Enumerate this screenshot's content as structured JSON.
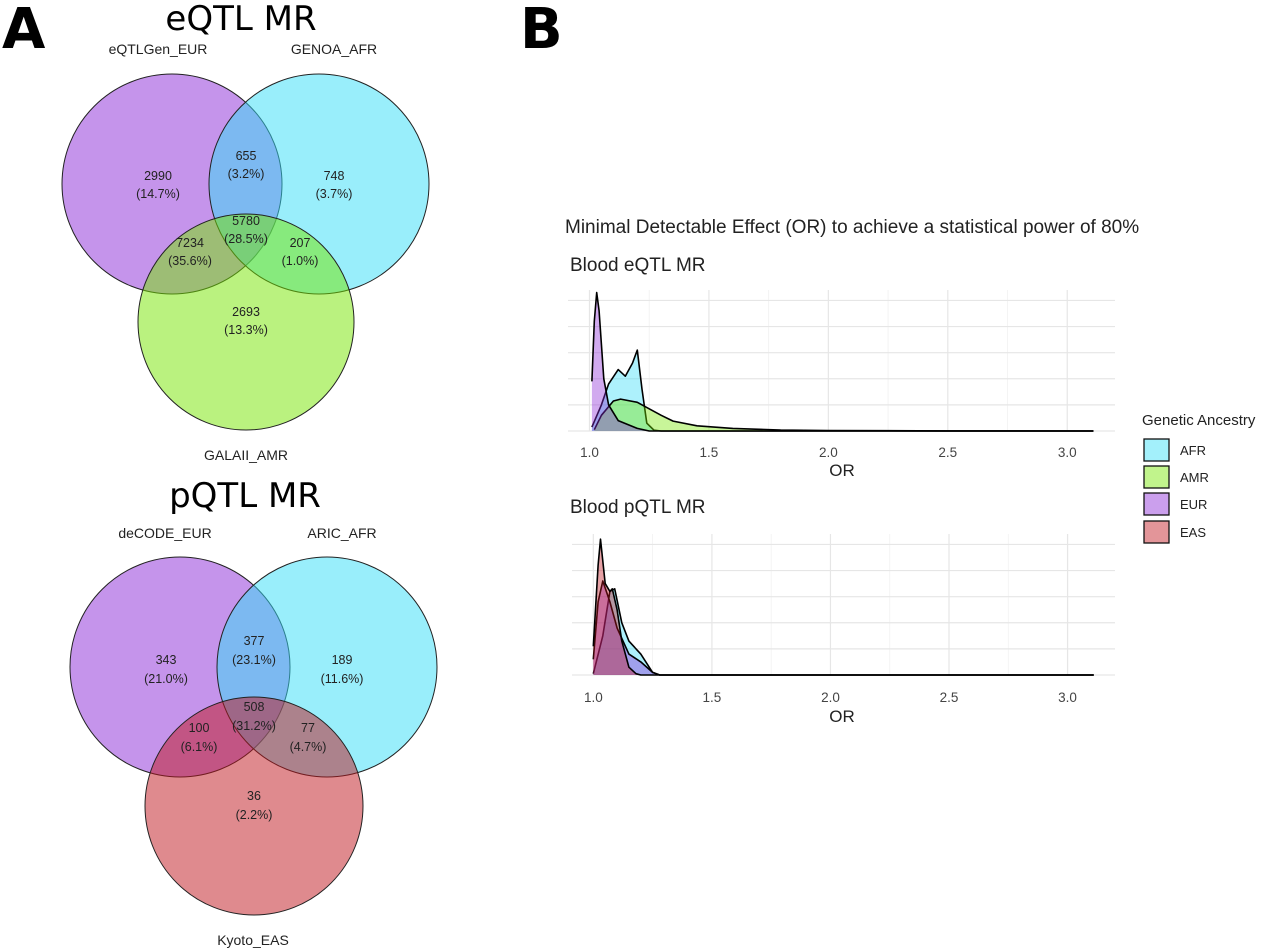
{
  "panel_a": {
    "letter": "A",
    "eqtl": {
      "title": "eQTL MR",
      "sets": [
        {
          "name": "eQTLGen_EUR",
          "color": "#8b2ad8"
        },
        {
          "name": "GENOA_AFR",
          "color": "#33ddf7"
        },
        {
          "name": "GALAII_AMR",
          "color": "#76e600"
        }
      ],
      "regions": {
        "only_1": {
          "count": "2990",
          "percent": "(14.7%)"
        },
        "only_2": {
          "count": "748",
          "percent": "(3.7%)"
        },
        "only_3": {
          "count": "2693",
          "percent": "(13.3%)"
        },
        "r12": {
          "count": "655",
          "percent": "(3.2%)"
        },
        "r13": {
          "count": "7234",
          "percent": "(35.6%)"
        },
        "r23": {
          "count": "207",
          "percent": "(1.0%)"
        },
        "r123": {
          "count": "5780",
          "percent": "(28.5%)"
        }
      }
    },
    "pqtl": {
      "title": "pQTL MR",
      "sets": [
        {
          "name": "deCODE_EUR",
          "color": "#8b2ad8"
        },
        {
          "name": "ARIC_AFR",
          "color": "#33ddf7"
        },
        {
          "name": "Kyoto_EAS",
          "color": "#c0151d"
        }
      ],
      "regions": {
        "only_1": {
          "count": "343",
          "percent": "(21.0%)"
        },
        "only_2": {
          "count": "189",
          "percent": "(11.6%)"
        },
        "only_3": {
          "count": "36",
          "percent": "(2.2%)"
        },
        "r12": {
          "count": "377",
          "percent": "(23.1%)"
        },
        "r13": {
          "count": "100",
          "percent": "(6.1%)"
        },
        "r23": {
          "count": "77",
          "percent": "(4.7%)"
        },
        "r123": {
          "count": "508",
          "percent": "(31.2%)"
        }
      }
    }
  },
  "panel_b": {
    "letter": "B",
    "title": "Minimal Detectable Effect (OR) to achieve a statistical power of 80%",
    "legend": {
      "title": "Genetic Ancestry",
      "placement": "right",
      "items": [
        {
          "label": "AFR",
          "color": "#33ddf7"
        },
        {
          "label": "AMR",
          "color": "#76e600"
        },
        {
          "label": "EUR",
          "color": "#8b2ad8"
        },
        {
          "label": "EAS",
          "color": "#c0151d"
        }
      ]
    }
  },
  "chart_data": [
    {
      "type": "area",
      "subtype": "density",
      "title": "Blood eQTL MR",
      "xlabel": "OR",
      "ylabel": "",
      "xlim": [
        0.91,
        3.2
      ],
      "ylim": [
        0,
        5.4
      ],
      "xticks": [
        "1.0",
        "1.5",
        "2.0",
        "2.5",
        "3.0"
      ],
      "y_tick_labels_shown": false,
      "grid": true,
      "series": [
        {
          "name": "AFR",
          "color": "#33ddf7",
          "points": [
            [
              1.01,
              0.15
            ],
            [
              1.05,
              1.0
            ],
            [
              1.08,
              1.8
            ],
            [
              1.12,
              2.35
            ],
            [
              1.15,
              2.1
            ],
            [
              1.18,
              2.6
            ],
            [
              1.2,
              3.1
            ],
            [
              1.22,
              1.6
            ],
            [
              1.24,
              0.3
            ],
            [
              1.27,
              0.03
            ],
            [
              1.3,
              0
            ],
            [
              3.11,
              0
            ]
          ]
        },
        {
          "name": "AMR",
          "color": "#76e600",
          "points": [
            [
              1.02,
              0.05
            ],
            [
              1.05,
              0.6
            ],
            [
              1.1,
              1.15
            ],
            [
              1.13,
              1.22
            ],
            [
              1.2,
              1.1
            ],
            [
              1.25,
              0.85
            ],
            [
              1.3,
              0.6
            ],
            [
              1.35,
              0.38
            ],
            [
              1.45,
              0.2
            ],
            [
              1.6,
              0.1
            ],
            [
              1.8,
              0.04
            ],
            [
              2.0,
              0.02
            ],
            [
              2.5,
              0.005
            ],
            [
              3.11,
              0
            ]
          ]
        },
        {
          "name": "EUR",
          "color": "#8b2ad8",
          "points": [
            [
              1.01,
              1.9
            ],
            [
              1.02,
              4.2
            ],
            [
              1.03,
              5.3
            ],
            [
              1.04,
              4.6
            ],
            [
              1.06,
              2.0
            ],
            [
              1.08,
              1.0
            ],
            [
              1.12,
              0.4
            ],
            [
              1.2,
              0.1
            ],
            [
              1.25,
              0
            ],
            [
              3.11,
              0
            ]
          ]
        }
      ]
    },
    {
      "type": "area",
      "subtype": "density",
      "title": "Blood pQTL MR",
      "xlabel": "OR",
      "ylabel": "",
      "xlim": [
        0.91,
        3.2
      ],
      "ylim": [
        0,
        5.4
      ],
      "xticks": [
        "1.0",
        "1.5",
        "2.0",
        "2.5",
        "3.0"
      ],
      "y_tick_labels_shown": false,
      "grid": true,
      "series": [
        {
          "name": "AFR",
          "color": "#33ddf7",
          "points": [
            [
              1.0,
              0.05
            ],
            [
              1.04,
              1.5
            ],
            [
              1.07,
              3.2
            ],
            [
              1.09,
              3.3
            ],
            [
              1.12,
              2.0
            ],
            [
              1.15,
              1.3
            ],
            [
              1.2,
              0.8
            ],
            [
              1.25,
              0.1
            ],
            [
              1.28,
              0
            ],
            [
              3.11,
              0
            ]
          ]
        },
        {
          "name": "EUR",
          "color": "#8b2ad8",
          "points": [
            [
              1.0,
              0.6
            ],
            [
              1.02,
              2.8
            ],
            [
              1.04,
              3.6
            ],
            [
              1.07,
              2.8
            ],
            [
              1.1,
              1.8
            ],
            [
              1.15,
              0.8
            ],
            [
              1.2,
              0.5
            ],
            [
              1.25,
              0.1
            ],
            [
              1.28,
              0
            ],
            [
              3.11,
              0
            ]
          ]
        },
        {
          "name": "EAS",
          "color": "#c0151d",
          "points": [
            [
              1.0,
              1.1
            ],
            [
              1.02,
              4.2
            ],
            [
              1.03,
              5.2
            ],
            [
              1.05,
              3.5
            ],
            [
              1.07,
              3.2
            ],
            [
              1.08,
              3.3
            ],
            [
              1.1,
              2.5
            ],
            [
              1.12,
              1.3
            ],
            [
              1.15,
              0.3
            ],
            [
              1.18,
              0.05
            ],
            [
              1.2,
              0
            ],
            [
              3.11,
              0
            ]
          ]
        }
      ]
    }
  ]
}
